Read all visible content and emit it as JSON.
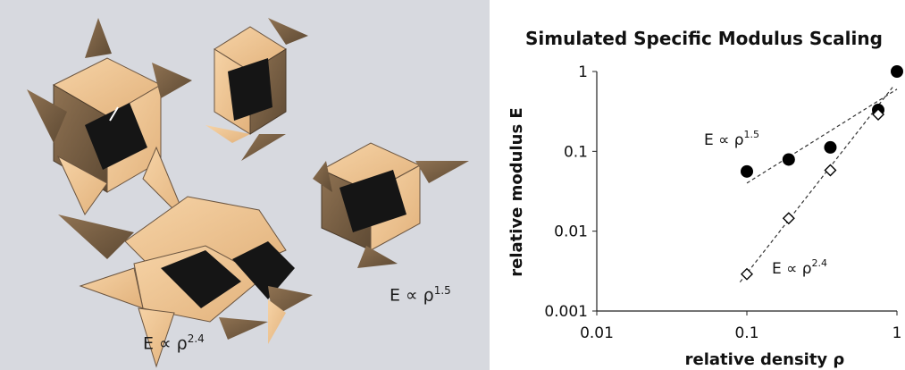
{
  "render_annotations": [
    {
      "text": "E ∝ ρ",
      "exp": "1.5"
    },
    {
      "text": "E ∝ ρ",
      "exp": "2.4"
    }
  ],
  "chart_data": {
    "type": "scatter",
    "title": "Simulated Specific Modulus Scaling",
    "xlabel": "relative density ρ",
    "ylabel": "relative modulus E",
    "x_scale": "log",
    "y_scale": "log",
    "xlim": [
      0.01,
      1
    ],
    "ylim": [
      0.001,
      1
    ],
    "x_ticks": [
      "0.01",
      "0.1",
      "1"
    ],
    "y_ticks": [
      "0.001",
      "0.01",
      "0.1",
      "1"
    ],
    "series": [
      {
        "name": "",
        "marker": "filled-circle",
        "points": [
          [
            0.1,
            0.056
          ],
          [
            0.19,
            0.079
          ],
          [
            0.36,
            0.112
          ],
          [
            0.75,
            0.33
          ],
          [
            1.0,
            1.0
          ]
        ],
        "fit": {
          "x": [
            0.1,
            1.0
          ],
          "y": [
            0.04,
            0.6
          ]
        }
      },
      {
        "name": "",
        "marker": "open-diamond",
        "points": [
          [
            0.1,
            0.0029
          ],
          [
            0.19,
            0.0145
          ],
          [
            0.36,
            0.058
          ],
          [
            0.75,
            0.29
          ]
        ],
        "fit": {
          "x": [
            0.09,
            0.95
          ],
          "y": [
            0.0023,
            0.66
          ]
        }
      }
    ],
    "annotations": [
      {
        "text": "E ∝ ρ",
        "exp": "1.5",
        "near": "upper series"
      },
      {
        "text": "E ∝ ρ",
        "exp": "2.4",
        "near": "lower series"
      }
    ]
  }
}
